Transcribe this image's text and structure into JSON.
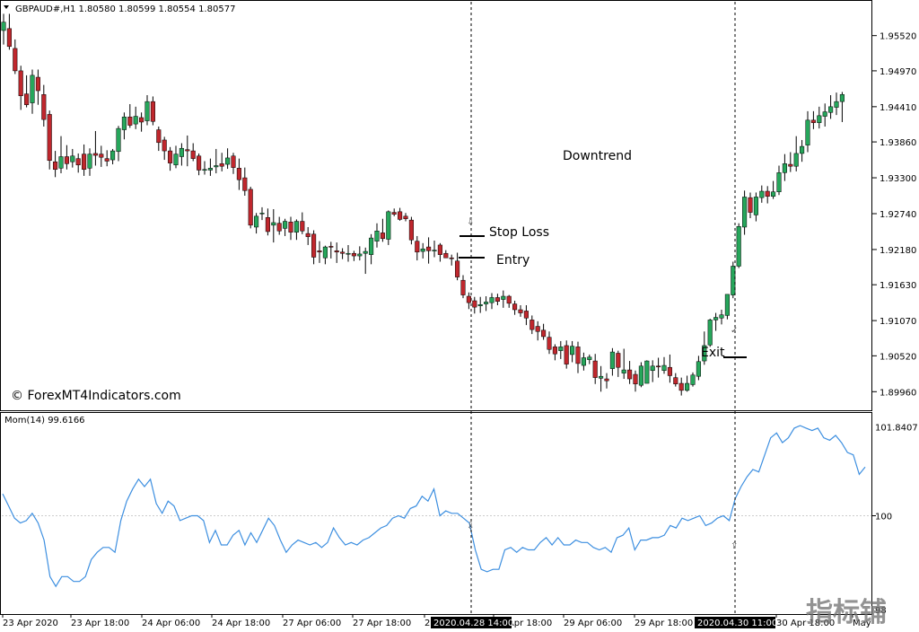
{
  "header": {
    "symbol_line": "GBPAUD#,H1  1.80580 1.80599 1.80554 1.80577"
  },
  "watermark": "© ForexMT4Indicators.com",
  "corner_logo": "指标铺",
  "annotations": {
    "downtrend": "Downtrend",
    "stop_loss": "Stop Loss",
    "entry": "Entry",
    "exit": "Exit"
  },
  "colors": {
    "bull": "#26a65b",
    "bear": "#c0272d",
    "momentum_line": "#3d8fe0",
    "level_line": "#cccccc"
  },
  "price_axis": {
    "ticks": [
      "1.95520",
      "1.94970",
      "1.94410",
      "1.93860",
      "1.93300",
      "1.92740",
      "1.92180",
      "1.91630",
      "1.91070",
      "1.90520",
      "1.89960"
    ]
  },
  "momentum": {
    "label": "Mom(14) 99.6166",
    "axis_ticks": [
      "101.8407",
      "100",
      "98"
    ]
  },
  "time_axis": {
    "labels": [
      "23 Apr 2020",
      "23 Apr 18:00",
      "24 Apr 06:00",
      "24 Apr 18:00",
      "27 Apr 06:00",
      "27 Apr 18:00",
      "28",
      "28 Apr 18:00",
      "29 Apr 06:00",
      "29 Apr 18:00",
      "30 Apr 18:00",
      "May"
    ],
    "highlight_entry": "2020.04.28 14:00",
    "highlight_exit": "2020.04.30 11:00"
  },
  "chart_data": {
    "type": "candlestick",
    "symbol": "GBPAUD#",
    "timeframe": "H1",
    "ylim": [
      1.8974,
      1.9602
    ],
    "candles": [
      {
        "o": 1.956,
        "h": 1.9586,
        "l": 1.9538,
        "c": 1.9573
      },
      {
        "o": 1.9563,
        "h": 1.9586,
        "l": 1.953,
        "c": 1.9535
      },
      {
        "o": 1.9532,
        "h": 1.9546,
        "l": 1.9492,
        "c": 1.9497
      },
      {
        "o": 1.9497,
        "h": 1.9505,
        "l": 1.9436,
        "c": 1.9458
      },
      {
        "o": 1.9461,
        "h": 1.949,
        "l": 1.944,
        "c": 1.9444
      },
      {
        "o": 1.9447,
        "h": 1.9499,
        "l": 1.943,
        "c": 1.949
      },
      {
        "o": 1.9487,
        "h": 1.9499,
        "l": 1.9444,
        "c": 1.9466
      },
      {
        "o": 1.946,
        "h": 1.9475,
        "l": 1.941,
        "c": 1.9421
      },
      {
        "o": 1.9429,
        "h": 1.9435,
        "l": 1.9343,
        "c": 1.9357
      },
      {
        "o": 1.9355,
        "h": 1.9372,
        "l": 1.9331,
        "c": 1.9343
      },
      {
        "o": 1.9345,
        "h": 1.9395,
        "l": 1.9337,
        "c": 1.9363
      },
      {
        "o": 1.9363,
        "h": 1.9381,
        "l": 1.9343,
        "c": 1.9352
      },
      {
        "o": 1.9355,
        "h": 1.9375,
        "l": 1.9346,
        "c": 1.9364
      },
      {
        "o": 1.936,
        "h": 1.9368,
        "l": 1.9338,
        "c": 1.935
      },
      {
        "o": 1.9367,
        "h": 1.9382,
        "l": 1.9333,
        "c": 1.9343
      },
      {
        "o": 1.9345,
        "h": 1.9376,
        "l": 1.9333,
        "c": 1.9367
      },
      {
        "o": 1.9368,
        "h": 1.9403,
        "l": 1.9349,
        "c": 1.9365
      },
      {
        "o": 1.9367,
        "h": 1.938,
        "l": 1.9347,
        "c": 1.9362
      },
      {
        "o": 1.936,
        "h": 1.9373,
        "l": 1.9348,
        "c": 1.9356
      },
      {
        "o": 1.9358,
        "h": 1.9375,
        "l": 1.9351,
        "c": 1.9372
      },
      {
        "o": 1.9371,
        "h": 1.9411,
        "l": 1.9356,
        "c": 1.9407
      },
      {
        "o": 1.9405,
        "h": 1.9432,
        "l": 1.939,
        "c": 1.9425
      },
      {
        "o": 1.9425,
        "h": 1.9445,
        "l": 1.9408,
        "c": 1.9412
      },
      {
        "o": 1.9414,
        "h": 1.9441,
        "l": 1.9406,
        "c": 1.9426
      },
      {
        "o": 1.9424,
        "h": 1.9432,
        "l": 1.9402,
        "c": 1.9417
      },
      {
        "o": 1.9419,
        "h": 1.9459,
        "l": 1.9412,
        "c": 1.9449
      },
      {
        "o": 1.9449,
        "h": 1.9457,
        "l": 1.9412,
        "c": 1.9418
      },
      {
        "o": 1.9405,
        "h": 1.941,
        "l": 1.9372,
        "c": 1.9385
      },
      {
        "o": 1.9389,
        "h": 1.9394,
        "l": 1.9358,
        "c": 1.9372
      },
      {
        "o": 1.9372,
        "h": 1.9378,
        "l": 1.9341,
        "c": 1.9353
      },
      {
        "o": 1.935,
        "h": 1.938,
        "l": 1.9345,
        "c": 1.9367
      },
      {
        "o": 1.9363,
        "h": 1.9384,
        "l": 1.9349,
        "c": 1.9376
      },
      {
        "o": 1.9374,
        "h": 1.9396,
        "l": 1.9348,
        "c": 1.9372
      },
      {
        "o": 1.9372,
        "h": 1.9384,
        "l": 1.9356,
        "c": 1.936
      },
      {
        "o": 1.9364,
        "h": 1.9368,
        "l": 1.9334,
        "c": 1.9342
      },
      {
        "o": 1.9343,
        "h": 1.9356,
        "l": 1.9335,
        "c": 1.9343
      },
      {
        "o": 1.9342,
        "h": 1.936,
        "l": 1.9333,
        "c": 1.9345
      },
      {
        "o": 1.9347,
        "h": 1.9375,
        "l": 1.9337,
        "c": 1.9349
      },
      {
        "o": 1.9352,
        "h": 1.9369,
        "l": 1.934,
        "c": 1.9348
      },
      {
        "o": 1.9351,
        "h": 1.9376,
        "l": 1.9344,
        "c": 1.9361
      },
      {
        "o": 1.9364,
        "h": 1.9369,
        "l": 1.9336,
        "c": 1.9346
      },
      {
        "o": 1.9345,
        "h": 1.936,
        "l": 1.9311,
        "c": 1.9327
      },
      {
        "o": 1.933,
        "h": 1.9346,
        "l": 1.9302,
        "c": 1.931
      },
      {
        "o": 1.9312,
        "h": 1.9316,
        "l": 1.9251,
        "c": 1.9256
      },
      {
        "o": 1.9253,
        "h": 1.9275,
        "l": 1.9243,
        "c": 1.927
      },
      {
        "o": 1.9274,
        "h": 1.9284,
        "l": 1.9264,
        "c": 1.9275
      },
      {
        "o": 1.9268,
        "h": 1.9282,
        "l": 1.924,
        "c": 1.9246
      },
      {
        "o": 1.9256,
        "h": 1.9281,
        "l": 1.9229,
        "c": 1.926
      },
      {
        "o": 1.9259,
        "h": 1.9269,
        "l": 1.9241,
        "c": 1.9247
      },
      {
        "o": 1.9251,
        "h": 1.9266,
        "l": 1.9239,
        "c": 1.9262
      },
      {
        "o": 1.9261,
        "h": 1.9269,
        "l": 1.9233,
        "c": 1.9245
      },
      {
        "o": 1.9245,
        "h": 1.9265,
        "l": 1.9233,
        "c": 1.9262
      },
      {
        "o": 1.9262,
        "h": 1.9276,
        "l": 1.9242,
        "c": 1.9247
      },
      {
        "o": 1.9243,
        "h": 1.9253,
        "l": 1.9225,
        "c": 1.9238
      },
      {
        "o": 1.9242,
        "h": 1.9248,
        "l": 1.9195,
        "c": 1.9206
      },
      {
        "o": 1.9216,
        "h": 1.9231,
        "l": 1.9197,
        "c": 1.9214
      },
      {
        "o": 1.9205,
        "h": 1.9224,
        "l": 1.9195,
        "c": 1.9222
      },
      {
        "o": 1.9223,
        "h": 1.923,
        "l": 1.9204,
        "c": 1.9222
      },
      {
        "o": 1.9216,
        "h": 1.9229,
        "l": 1.9197,
        "c": 1.9214
      },
      {
        "o": 1.9214,
        "h": 1.922,
        "l": 1.9203,
        "c": 1.9212
      },
      {
        "o": 1.9211,
        "h": 1.9225,
        "l": 1.9199,
        "c": 1.9212
      },
      {
        "o": 1.9212,
        "h": 1.9216,
        "l": 1.92,
        "c": 1.9208
      },
      {
        "o": 1.9208,
        "h": 1.9223,
        "l": 1.9201,
        "c": 1.9211
      },
      {
        "o": 1.9212,
        "h": 1.9221,
        "l": 1.918,
        "c": 1.9215
      },
      {
        "o": 1.921,
        "h": 1.9242,
        "l": 1.9195,
        "c": 1.9236
      },
      {
        "o": 1.9231,
        "h": 1.9259,
        "l": 1.9221,
        "c": 1.9247
      },
      {
        "o": 1.9244,
        "h": 1.9266,
        "l": 1.923,
        "c": 1.9235
      },
      {
        "o": 1.9234,
        "h": 1.9279,
        "l": 1.9225,
        "c": 1.9277
      },
      {
        "o": 1.9276,
        "h": 1.9282,
        "l": 1.927,
        "c": 1.9273
      },
      {
        "o": 1.9277,
        "h": 1.9283,
        "l": 1.9263,
        "c": 1.9265
      },
      {
        "o": 1.927,
        "h": 1.9275,
        "l": 1.9262,
        "c": 1.9266
      },
      {
        "o": 1.9264,
        "h": 1.9269,
        "l": 1.9226,
        "c": 1.9233
      },
      {
        "o": 1.9231,
        "h": 1.9239,
        "l": 1.9201,
        "c": 1.9214
      },
      {
        "o": 1.9215,
        "h": 1.9228,
        "l": 1.9204,
        "c": 1.9219
      },
      {
        "o": 1.9222,
        "h": 1.9237,
        "l": 1.9196,
        "c": 1.9216
      },
      {
        "o": 1.9216,
        "h": 1.9232,
        "l": 1.9206,
        "c": 1.9217
      },
      {
        "o": 1.9225,
        "h": 1.9228,
        "l": 1.9199,
        "c": 1.921
      },
      {
        "o": 1.9212,
        "h": 1.9217,
        "l": 1.9205,
        "c": 1.9205
      },
      {
        "o": 1.9205,
        "h": 1.921,
        "l": 1.9193,
        "c": 1.9204
      },
      {
        "o": 1.92,
        "h": 1.9213,
        "l": 1.917,
        "c": 1.9175
      },
      {
        "o": 1.917,
        "h": 1.9178,
        "l": 1.9142,
        "c": 1.9147
      },
      {
        "o": 1.9145,
        "h": 1.9151,
        "l": 1.9125,
        "c": 1.9135
      },
      {
        "o": 1.9138,
        "h": 1.9144,
        "l": 1.9118,
        "c": 1.9128
      },
      {
        "o": 1.913,
        "h": 1.9144,
        "l": 1.9119,
        "c": 1.9132
      },
      {
        "o": 1.9133,
        "h": 1.9145,
        "l": 1.9122,
        "c": 1.9136
      },
      {
        "o": 1.9135,
        "h": 1.915,
        "l": 1.9125,
        "c": 1.9143
      },
      {
        "o": 1.9143,
        "h": 1.9149,
        "l": 1.9131,
        "c": 1.9137
      },
      {
        "o": 1.914,
        "h": 1.9154,
        "l": 1.9127,
        "c": 1.9145
      },
      {
        "o": 1.9145,
        "h": 1.9147,
        "l": 1.9127,
        "c": 1.9134
      },
      {
        "o": 1.9133,
        "h": 1.9138,
        "l": 1.9116,
        "c": 1.9124
      },
      {
        "o": 1.9124,
        "h": 1.9131,
        "l": 1.9113,
        "c": 1.9119
      },
      {
        "o": 1.9122,
        "h": 1.9131,
        "l": 1.91,
        "c": 1.9111
      },
      {
        "o": 1.9108,
        "h": 1.9115,
        "l": 1.9086,
        "c": 1.9093
      },
      {
        "o": 1.9098,
        "h": 1.9106,
        "l": 1.9076,
        "c": 1.909
      },
      {
        "o": 1.9092,
        "h": 1.9102,
        "l": 1.9077,
        "c": 1.9082
      },
      {
        "o": 1.9081,
        "h": 1.909,
        "l": 1.9055,
        "c": 1.9062
      },
      {
        "o": 1.9066,
        "h": 1.907,
        "l": 1.9045,
        "c": 1.9055
      },
      {
        "o": 1.906,
        "h": 1.9075,
        "l": 1.9047,
        "c": 1.9066
      },
      {
        "o": 1.9068,
        "h": 1.9076,
        "l": 1.9032,
        "c": 1.9039
      },
      {
        "o": 1.9054,
        "h": 1.9075,
        "l": 1.9042,
        "c": 1.9067
      },
      {
        "o": 1.9066,
        "h": 1.9074,
        "l": 1.9025,
        "c": 1.904
      },
      {
        "o": 1.9037,
        "h": 1.9057,
        "l": 1.9029,
        "c": 1.9049
      },
      {
        "o": 1.9046,
        "h": 1.9054,
        "l": 1.9039,
        "c": 1.905
      },
      {
        "o": 1.9044,
        "h": 1.9055,
        "l": 1.9008,
        "c": 1.9018
      },
      {
        "o": 1.9017,
        "h": 1.9036,
        "l": 1.8996,
        "c": 1.902
      },
      {
        "o": 1.9016,
        "h": 1.9025,
        "l": 1.9001,
        "c": 1.9013
      },
      {
        "o": 1.9032,
        "h": 1.9064,
        "l": 1.9021,
        "c": 1.9058
      },
      {
        "o": 1.9056,
        "h": 1.906,
        "l": 1.9019,
        "c": 1.9034
      },
      {
        "o": 1.9025,
        "h": 1.9063,
        "l": 1.9016,
        "c": 1.903
      },
      {
        "o": 1.903,
        "h": 1.9044,
        "l": 1.9008,
        "c": 1.9016
      },
      {
        "o": 1.9023,
        "h": 1.9029,
        "l": 1.8996,
        "c": 1.9008
      },
      {
        "o": 1.9006,
        "h": 1.9042,
        "l": 1.9003,
        "c": 1.9036
      },
      {
        "o": 1.9009,
        "h": 1.9045,
        "l": 1.9009,
        "c": 1.9044
      },
      {
        "o": 1.9029,
        "h": 1.9045,
        "l": 1.9011,
        "c": 1.9036
      },
      {
        "o": 1.9036,
        "h": 1.9049,
        "l": 1.9018,
        "c": 1.9035
      },
      {
        "o": 1.9029,
        "h": 1.905,
        "l": 1.9024,
        "c": 1.9037
      },
      {
        "o": 1.9034,
        "h": 1.9054,
        "l": 1.901,
        "c": 1.9021
      },
      {
        "o": 1.9018,
        "h": 1.9025,
        "l": 1.9004,
        "c": 1.9008
      },
      {
        "o": 1.9009,
        "h": 1.9018,
        "l": 1.899,
        "c": 1.8998
      },
      {
        "o": 1.8998,
        "h": 1.9021,
        "l": 1.8996,
        "c": 1.9009
      },
      {
        "o": 1.9007,
        "h": 1.9026,
        "l": 1.9004,
        "c": 1.9022
      },
      {
        "o": 1.902,
        "h": 1.9052,
        "l": 1.9014,
        "c": 1.9043
      },
      {
        "o": 1.9044,
        "h": 1.909,
        "l": 1.9038,
        "c": 1.9068
      },
      {
        "o": 1.9069,
        "h": 1.911,
        "l": 1.9066,
        "c": 1.9108
      },
      {
        "o": 1.9108,
        "h": 1.9119,
        "l": 1.9091,
        "c": 1.9112
      },
      {
        "o": 1.9111,
        "h": 1.9124,
        "l": 1.9101,
        "c": 1.9116
      },
      {
        "o": 1.9115,
        "h": 1.9148,
        "l": 1.9109,
        "c": 1.9148
      },
      {
        "o": 1.9147,
        "h": 1.9199,
        "l": 1.9142,
        "c": 1.9192
      },
      {
        "o": 1.9192,
        "h": 1.9259,
        "l": 1.9189,
        "c": 1.9254
      },
      {
        "o": 1.9253,
        "h": 1.931,
        "l": 1.9241,
        "c": 1.93
      },
      {
        "o": 1.9299,
        "h": 1.9307,
        "l": 1.9267,
        "c": 1.9276
      },
      {
        "o": 1.9272,
        "h": 1.9307,
        "l": 1.9262,
        "c": 1.93
      },
      {
        "o": 1.9299,
        "h": 1.9318,
        "l": 1.9291,
        "c": 1.9309
      },
      {
        "o": 1.9309,
        "h": 1.9317,
        "l": 1.929,
        "c": 1.9301
      },
      {
        "o": 1.9301,
        "h": 1.9325,
        "l": 1.9297,
        "c": 1.9308
      },
      {
        "o": 1.9308,
        "h": 1.9349,
        "l": 1.9303,
        "c": 1.9338
      },
      {
        "o": 1.9338,
        "h": 1.9367,
        "l": 1.9325,
        "c": 1.9352
      },
      {
        "o": 1.9351,
        "h": 1.937,
        "l": 1.9339,
        "c": 1.9348
      },
      {
        "o": 1.9348,
        "h": 1.9395,
        "l": 1.934,
        "c": 1.9368
      },
      {
        "o": 1.9368,
        "h": 1.9389,
        "l": 1.9355,
        "c": 1.9379
      },
      {
        "o": 1.9381,
        "h": 1.9434,
        "l": 1.937,
        "c": 1.942
      },
      {
        "o": 1.942,
        "h": 1.9434,
        "l": 1.9406,
        "c": 1.9416
      },
      {
        "o": 1.9416,
        "h": 1.9441,
        "l": 1.9407,
        "c": 1.9427
      },
      {
        "o": 1.9426,
        "h": 1.9446,
        "l": 1.941,
        "c": 1.9433
      },
      {
        "o": 1.9432,
        "h": 1.9459,
        "l": 1.9422,
        "c": 1.9441
      },
      {
        "o": 1.944,
        "h": 1.9463,
        "l": 1.9428,
        "c": 1.9449
      },
      {
        "o": 1.9449,
        "h": 1.9464,
        "l": 1.9417,
        "c": 1.946
      }
    ],
    "momentum_series": [
      100.45,
      100.2,
      99.95,
      99.85,
      99.9,
      100.05,
      99.85,
      99.5,
      98.75,
      98.55,
      98.75,
      98.75,
      98.65,
      98.65,
      98.75,
      99.1,
      99.25,
      99.35,
      99.35,
      99.25,
      99.9,
      100.3,
      100.55,
      100.75,
      100.6,
      100.75,
      100.25,
      100.05,
      100.3,
      100.2,
      99.9,
      99.95,
      100.0,
      100.0,
      99.9,
      99.45,
      99.7,
      99.4,
      99.4,
      99.6,
      99.7,
      99.4,
      99.65,
      99.45,
      99.7,
      99.95,
      99.8,
      99.5,
      99.25,
      99.4,
      99.5,
      99.45,
      99.4,
      99.45,
      99.35,
      99.45,
      99.75,
      99.55,
      99.4,
      99.45,
      99.4,
      99.5,
      99.55,
      99.65,
      99.75,
      99.8,
      99.95,
      100.0,
      99.95,
      100.15,
      100.2,
      100.4,
      100.3,
      100.55,
      100.0,
      100.1,
      100.05,
      100.05,
      99.95,
      99.85,
      99.3,
      98.9,
      98.85,
      98.9,
      98.9,
      99.3,
      99.35,
      99.25,
      99.35,
      99.3,
      99.3,
      99.45,
      99.55,
      99.4,
      99.55,
      99.4,
      99.4,
      99.5,
      99.45,
      99.45,
      99.35,
      99.3,
      99.35,
      99.25,
      99.55,
      99.6,
      99.75,
      99.3,
      99.5,
      99.5,
      99.55,
      99.55,
      99.6,
      99.8,
      99.75,
      99.95,
      99.9,
      99.95,
      100.0,
      99.8,
      99.85,
      99.95,
      100.0,
      99.9,
      100.35,
      100.6,
      100.8,
      100.95,
      100.9,
      101.25,
      101.6,
      101.7,
      101.5,
      101.6,
      101.8,
      101.85,
      101.8,
      101.75,
      101.8,
      101.6,
      101.55,
      101.65,
      101.5,
      101.3,
      101.25,
      100.85,
      101.0
    ]
  }
}
